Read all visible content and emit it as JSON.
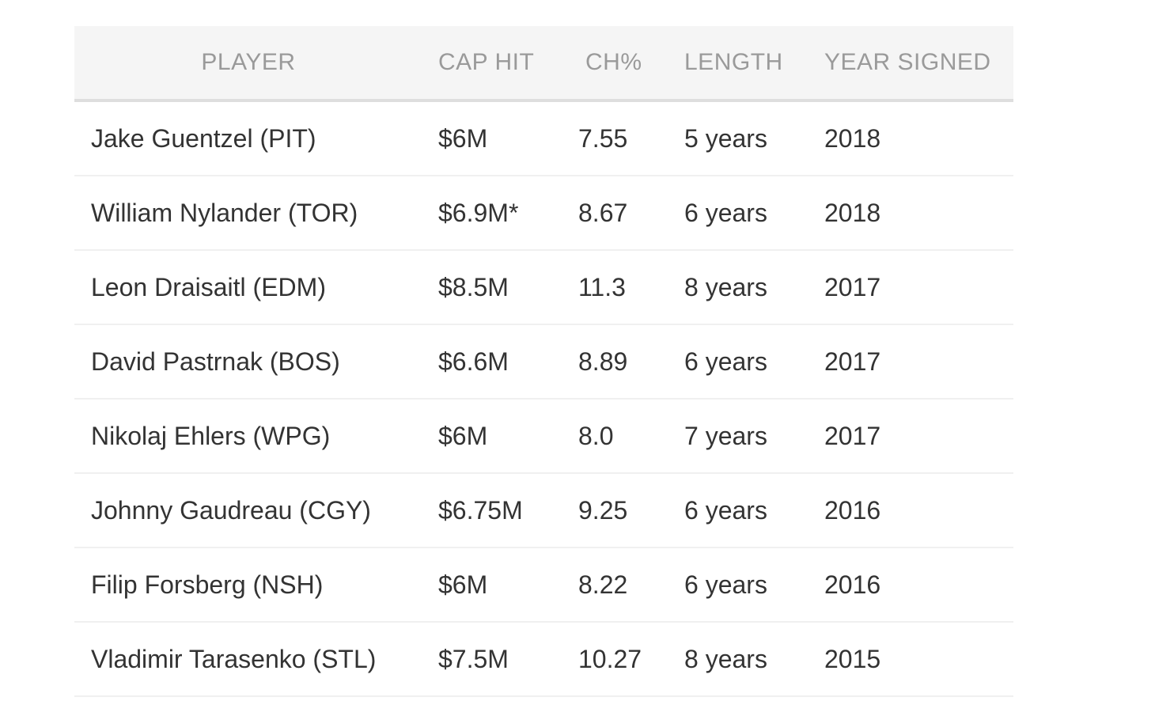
{
  "table": {
    "headers": {
      "player": "PLAYER",
      "cap_hit": "CAP HIT",
      "ch_pct": "CH%",
      "length": "LENGTH",
      "year_signed": "YEAR SIGNED"
    },
    "rows": [
      {
        "player": "Jake Guentzel (PIT)",
        "cap_hit": "$6M",
        "ch_pct": "7.55",
        "length": "5 years",
        "year_signed": "2018"
      },
      {
        "player": "William Nylander (TOR)",
        "cap_hit": "$6.9M*",
        "ch_pct": "8.67",
        "length": "6 years",
        "year_signed": "2018"
      },
      {
        "player": "Leon Draisaitl (EDM)",
        "cap_hit": "$8.5M",
        "ch_pct": "11.3",
        "length": "8 years",
        "year_signed": "2017"
      },
      {
        "player": "David Pastrnak (BOS)",
        "cap_hit": "$6.6M",
        "ch_pct": "8.89",
        "length": "6 years",
        "year_signed": "2017"
      },
      {
        "player": "Nikolaj Ehlers (WPG)",
        "cap_hit": "$6M",
        "ch_pct": "8.0",
        "length": "7 years",
        "year_signed": "2017"
      },
      {
        "player": "Johnny Gaudreau (CGY)",
        "cap_hit": "$6.75M",
        "ch_pct": "9.25",
        "length": "6 years",
        "year_signed": "2016"
      },
      {
        "player": "Filip Forsberg (NSH)",
        "cap_hit": "$6M",
        "ch_pct": "8.22",
        "length": "6 years",
        "year_signed": "2016"
      },
      {
        "player": "Vladimir Tarasenko (STL)",
        "cap_hit": "$7.5M",
        "ch_pct": "10.27",
        "length": "8 years",
        "year_signed": "2015"
      }
    ]
  }
}
